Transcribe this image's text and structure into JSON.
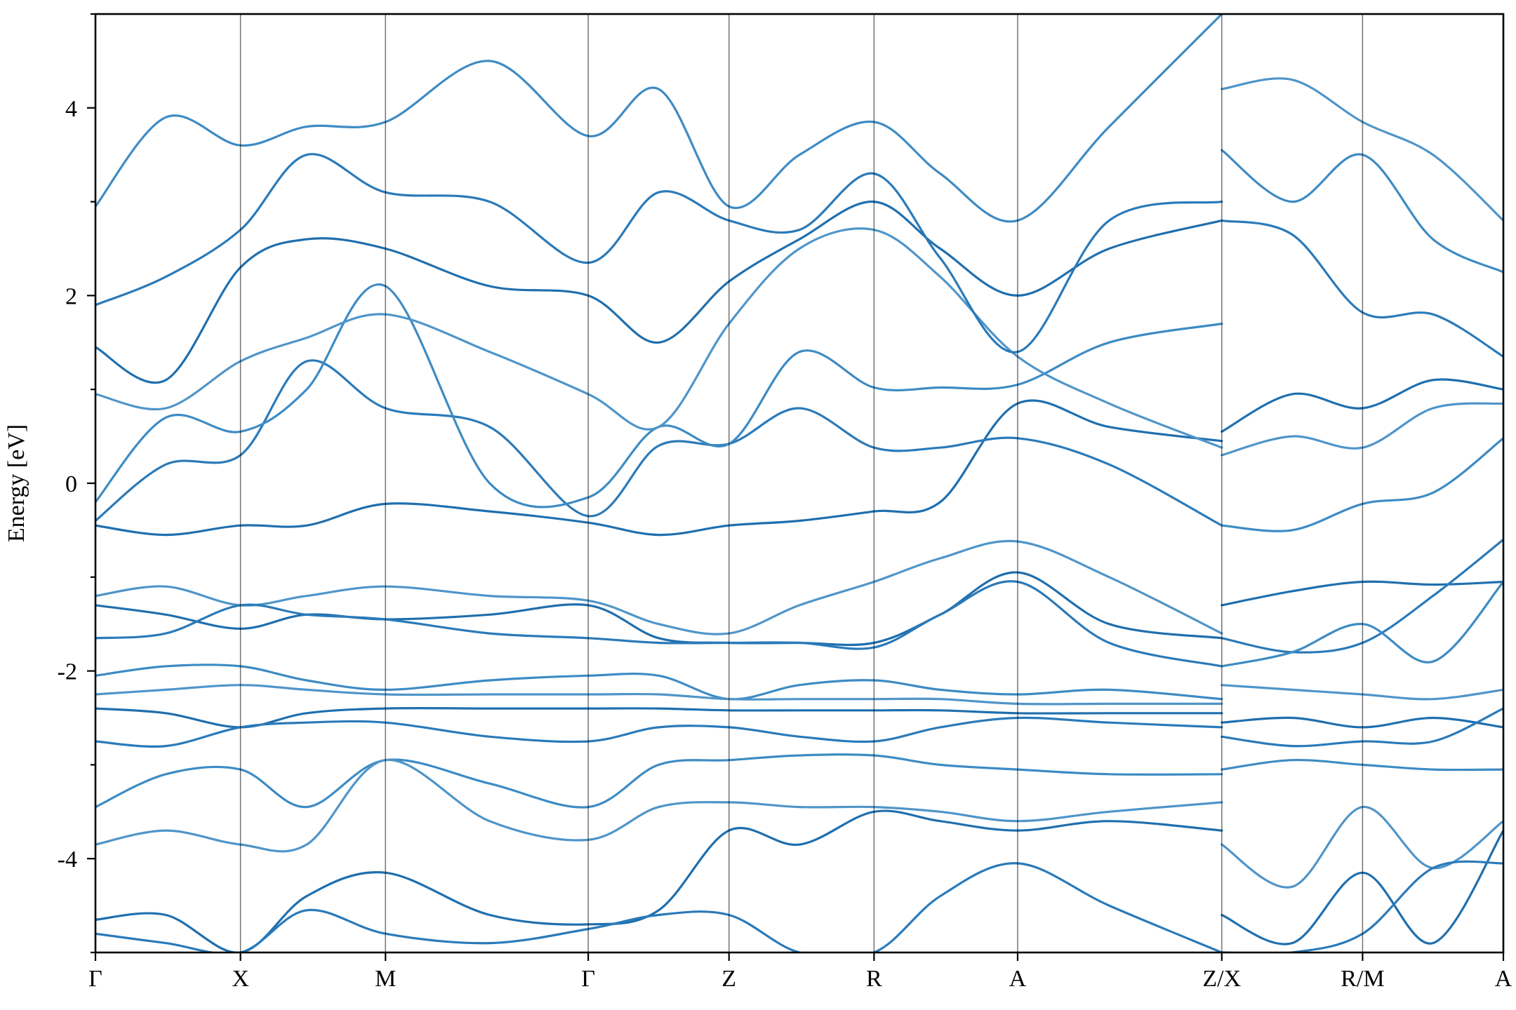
{
  "chart_data": {
    "type": "line",
    "title": "",
    "xlabel": "",
    "ylabel": "Energy [eV]",
    "ylim": [
      -5,
      5
    ],
    "yticks": [
      -4,
      -2,
      0,
      2,
      4
    ],
    "ytick_labels": [
      "-4",
      "-2",
      "0",
      "2",
      "4"
    ],
    "grid": false,
    "legend": "none",
    "xlim": [
      0,
      10.0
    ],
    "high_symmetry_points": [
      {
        "label": "Γ",
        "x": 0.0
      },
      {
        "label": "X",
        "x": 1.03
      },
      {
        "label": "M",
        "x": 2.06
      },
      {
        "label": "Γ",
        "x": 3.5
      },
      {
        "label": "Z",
        "x": 4.5
      },
      {
        "label": "R",
        "x": 5.53
      },
      {
        "label": "A",
        "x": 6.55
      },
      {
        "label": "Z/X",
        "x": 8.0
      },
      {
        "label": "R/M",
        "x": 9.0
      },
      {
        "label": "A",
        "x": 10.0
      }
    ],
    "colors": [
      "#1f6fae",
      "#2a7ab9",
      "#3d8bc4",
      "#4f95c9"
    ],
    "series": [
      {
        "x": [
          0.0,
          0.5,
          1.03,
          1.5,
          2.06,
          2.8,
          3.5,
          4.0,
          4.5,
          5.0,
          5.53,
          6.0,
          6.55,
          7.2,
          8.0
        ],
        "y": [
          -0.45,
          -0.55,
          -0.45,
          -0.45,
          -0.22,
          -0.3,
          -0.42,
          -0.55,
          -0.45,
          -0.4,
          -0.3,
          -0.2,
          0.85,
          0.6,
          0.45
        ]
      },
      {
        "x": [
          0.0,
          0.5,
          1.03,
          1.5,
          2.06,
          2.8,
          3.5,
          4.0,
          4.5,
          5.0,
          5.53,
          6.0,
          6.55,
          7.2,
          8.0
        ],
        "y": [
          -0.4,
          0.2,
          0.3,
          1.3,
          0.8,
          0.6,
          -0.35,
          0.4,
          0.42,
          0.8,
          0.38,
          0.38,
          0.48,
          0.2,
          -0.45
        ]
      },
      {
        "x": [
          0.0,
          0.5,
          1.03,
          1.5,
          2.06,
          2.8,
          3.5,
          4.0,
          4.5,
          5.0,
          5.53,
          6.0,
          6.55,
          7.2,
          8.0
        ],
        "y": [
          -0.2,
          0.7,
          0.55,
          1.0,
          2.1,
          0.0,
          -0.15,
          0.6,
          0.42,
          1.4,
          1.02,
          1.02,
          1.05,
          1.5,
          1.7
        ]
      },
      {
        "x": [
          0.0,
          0.5,
          1.03,
          1.5,
          2.06,
          2.8,
          3.5,
          4.0,
          4.5,
          5.0,
          5.53,
          6.0,
          6.55,
          7.2,
          8.0
        ],
        "y": [
          0.95,
          0.8,
          1.3,
          1.55,
          1.8,
          1.4,
          0.95,
          0.6,
          1.7,
          2.5,
          2.7,
          2.2,
          1.35,
          0.85,
          0.38
        ]
      },
      {
        "x": [
          0.0,
          0.5,
          1.03,
          1.5,
          2.06,
          2.8,
          3.5,
          4.0,
          4.5,
          5.0,
          5.53,
          6.0,
          6.55,
          7.2,
          8.0
        ],
        "y": [
          1.45,
          1.1,
          2.3,
          2.6,
          2.5,
          2.1,
          2.0,
          1.5,
          2.15,
          2.6,
          3.0,
          2.5,
          2.0,
          2.5,
          2.8
        ]
      },
      {
        "x": [
          0.0,
          0.5,
          1.03,
          1.5,
          2.06,
          2.8,
          3.5,
          4.0,
          4.5,
          5.0,
          5.53,
          6.0,
          6.55,
          7.2,
          8.0
        ],
        "y": [
          1.9,
          2.2,
          2.7,
          3.5,
          3.1,
          3.0,
          2.35,
          3.1,
          2.8,
          2.7,
          3.3,
          2.4,
          1.4,
          2.8,
          3.0
        ]
      },
      {
        "x": [
          0.0,
          0.5,
          1.03,
          1.5,
          2.06,
          2.8,
          3.5,
          4.0,
          4.5,
          5.0,
          5.53,
          6.0,
          6.55,
          7.2,
          8.0
        ],
        "y": [
          2.95,
          3.9,
          3.6,
          3.8,
          3.85,
          4.5,
          3.7,
          4.2,
          2.95,
          3.5,
          3.85,
          3.3,
          2.8,
          3.8,
          5.0
        ]
      },
      {
        "x": [
          0.0,
          0.5,
          1.03,
          1.5,
          2.06,
          2.8,
          3.5,
          4.0,
          4.5,
          5.0,
          5.53,
          6.0,
          6.55,
          7.2,
          8.0
        ],
        "y": [
          -1.2,
          -1.1,
          -1.3,
          -1.2,
          -1.1,
          -1.2,
          -1.25,
          -1.5,
          -1.6,
          -1.3,
          -1.05,
          -0.8,
          -0.62,
          -1.0,
          -1.6
        ]
      },
      {
        "x": [
          0.0,
          0.5,
          1.03,
          1.5,
          2.06,
          2.8,
          3.5,
          4.0,
          4.5,
          5.0,
          5.53,
          6.0,
          6.55,
          7.2,
          8.0
        ],
        "y": [
          -1.3,
          -1.4,
          -1.55,
          -1.4,
          -1.45,
          -1.4,
          -1.3,
          -1.65,
          -1.7,
          -1.7,
          -1.7,
          -1.4,
          -0.95,
          -1.5,
          -1.65
        ]
      },
      {
        "x": [
          0.0,
          0.5,
          1.03,
          1.5,
          2.06,
          2.8,
          3.5,
          4.0,
          4.5,
          5.0,
          5.53,
          6.0,
          6.55,
          7.2,
          8.0
        ],
        "y": [
          -1.65,
          -1.6,
          -1.3,
          -1.4,
          -1.45,
          -1.6,
          -1.65,
          -1.7,
          -1.7,
          -1.7,
          -1.75,
          -1.4,
          -1.05,
          -1.7,
          -1.95
        ]
      },
      {
        "x": [
          0.0,
          0.5,
          1.03,
          1.5,
          2.06,
          2.8,
          3.5,
          4.0,
          4.5,
          5.0,
          5.53,
          6.0,
          6.55,
          7.2,
          8.0
        ],
        "y": [
          -2.05,
          -1.95,
          -1.95,
          -2.1,
          -2.2,
          -2.1,
          -2.05,
          -2.05,
          -2.3,
          -2.15,
          -2.1,
          -2.2,
          -2.25,
          -2.2,
          -2.3
        ]
      },
      {
        "x": [
          0.0,
          0.5,
          1.03,
          1.5,
          2.06,
          2.8,
          3.5,
          4.0,
          4.5,
          5.0,
          5.53,
          6.0,
          6.55,
          7.2,
          8.0
        ],
        "y": [
          -2.25,
          -2.2,
          -2.15,
          -2.2,
          -2.25,
          -2.25,
          -2.25,
          -2.25,
          -2.3,
          -2.3,
          -2.3,
          -2.3,
          -2.35,
          -2.35,
          -2.35
        ]
      },
      {
        "x": [
          0.0,
          0.5,
          1.03,
          1.5,
          2.06,
          2.8,
          3.5,
          4.0,
          4.5,
          5.0,
          5.53,
          6.0,
          6.55,
          7.2,
          8.0
        ],
        "y": [
          -2.4,
          -2.45,
          -2.6,
          -2.45,
          -2.4,
          -2.4,
          -2.4,
          -2.4,
          -2.42,
          -2.42,
          -2.42,
          -2.42,
          -2.45,
          -2.45,
          -2.45
        ]
      },
      {
        "x": [
          0.0,
          0.5,
          1.03,
          1.5,
          2.06,
          2.8,
          3.5,
          4.0,
          4.5,
          5.0,
          5.53,
          6.0,
          6.55,
          7.2,
          8.0
        ],
        "y": [
          -2.75,
          -2.8,
          -2.6,
          -2.55,
          -2.55,
          -2.7,
          -2.75,
          -2.6,
          -2.6,
          -2.7,
          -2.75,
          -2.6,
          -2.5,
          -2.55,
          -2.6
        ]
      },
      {
        "x": [
          0.0,
          0.5,
          1.03,
          1.5,
          2.06,
          2.8,
          3.5,
          4.0,
          4.5,
          5.0,
          5.53,
          6.0,
          6.55,
          7.2,
          8.0
        ],
        "y": [
          -3.45,
          -3.1,
          -3.05,
          -3.45,
          -2.95,
          -3.2,
          -3.45,
          -3.0,
          -2.95,
          -2.9,
          -2.9,
          -3.0,
          -3.05,
          -3.1,
          -3.1
        ]
      },
      {
        "x": [
          0.0,
          0.5,
          1.03,
          1.5,
          2.06,
          2.8,
          3.5,
          4.0,
          4.5,
          5.0,
          5.53,
          6.0,
          6.55,
          7.2,
          8.0
        ],
        "y": [
          -3.85,
          -3.7,
          -3.85,
          -3.85,
          -2.95,
          -3.6,
          -3.8,
          -3.45,
          -3.4,
          -3.45,
          -3.45,
          -3.5,
          -3.6,
          -3.5,
          -3.4
        ]
      },
      {
        "x": [
          0.0,
          0.5,
          1.03,
          1.5,
          2.06,
          2.8,
          3.5,
          4.0,
          4.5,
          5.0,
          5.53,
          6.0,
          6.55,
          7.2,
          8.0
        ],
        "y": [
          -4.65,
          -4.6,
          -5.0,
          -4.4,
          -4.15,
          -4.6,
          -4.7,
          -4.55,
          -3.7,
          -3.85,
          -3.5,
          -3.6,
          -3.7,
          -3.6,
          -3.7
        ]
      },
      {
        "x": [
          0.0,
          0.5,
          1.03,
          1.5,
          2.06,
          2.8,
          3.5,
          4.0,
          4.5,
          5.0,
          5.53,
          6.0,
          6.55,
          7.2,
          8.0
        ],
        "y": [
          -4.8,
          -4.9,
          -5.0,
          -4.55,
          -4.8,
          -4.9,
          -4.75,
          -4.6,
          -4.6,
          -5.0,
          -5.0,
          -4.4,
          -4.05,
          -4.5,
          -5.0
        ]
      },
      {
        "x": [
          8.0,
          8.5,
          9.0,
          9.5,
          10.0
        ],
        "y": [
          -0.45,
          -0.5,
          -0.22,
          -0.1,
          0.48
        ]
      },
      {
        "x": [
          8.0,
          8.5,
          9.0,
          9.5,
          10.0
        ],
        "y": [
          0.3,
          0.5,
          0.38,
          0.8,
          0.85
        ]
      },
      {
        "x": [
          8.0,
          8.5,
          9.0,
          9.5,
          10.0
        ],
        "y": [
          0.55,
          0.95,
          0.8,
          1.1,
          1.0
        ]
      },
      {
        "x": [
          8.0,
          8.5,
          9.0,
          9.5,
          10.0
        ],
        "y": [
          2.8,
          2.65,
          1.82,
          1.8,
          1.35
        ]
      },
      {
        "x": [
          8.0,
          8.5,
          9.0,
          9.5,
          10.0
        ],
        "y": [
          3.55,
          3.0,
          3.5,
          2.6,
          2.25
        ]
      },
      {
        "x": [
          8.0,
          8.5,
          9.0,
          9.5,
          10.0
        ],
        "y": [
          4.2,
          4.3,
          3.85,
          3.5,
          2.8
        ]
      },
      {
        "x": [
          8.0,
          8.5,
          9.0,
          9.5,
          10.0
        ],
        "y": [
          -1.3,
          -1.15,
          -1.05,
          -1.08,
          -1.05
        ]
      },
      {
        "x": [
          8.0,
          8.5,
          9.0,
          9.5,
          10.0
        ],
        "y": [
          -1.65,
          -1.8,
          -1.7,
          -1.2,
          -0.6
        ]
      },
      {
        "x": [
          8.0,
          8.5,
          9.0,
          9.5,
          10.0
        ],
        "y": [
          -1.95,
          -1.8,
          -1.5,
          -1.9,
          -1.05
        ]
      },
      {
        "x": [
          8.0,
          8.5,
          9.0,
          9.5,
          10.0
        ],
        "y": [
          -2.15,
          -2.2,
          -2.25,
          -2.3,
          -2.2
        ]
      },
      {
        "x": [
          8.0,
          8.5,
          9.0,
          9.5,
          10.0
        ],
        "y": [
          -2.55,
          -2.5,
          -2.6,
          -2.5,
          -2.6
        ]
      },
      {
        "x": [
          8.0,
          8.5,
          9.0,
          9.5,
          10.0
        ],
        "y": [
          -2.7,
          -2.8,
          -2.75,
          -2.75,
          -2.4
        ]
      },
      {
        "x": [
          8.0,
          8.5,
          9.0,
          9.5,
          10.0
        ],
        "y": [
          -3.05,
          -2.95,
          -3.0,
          -3.05,
          -3.05
        ]
      },
      {
        "x": [
          8.0,
          8.5,
          9.0,
          9.5,
          10.0
        ],
        "y": [
          -3.85,
          -4.3,
          -3.45,
          -4.1,
          -3.6
        ]
      },
      {
        "x": [
          8.0,
          8.5,
          9.0,
          9.5,
          10.0
        ],
        "y": [
          -4.6,
          -4.9,
          -4.15,
          -4.9,
          -3.7
        ]
      },
      {
        "x": [
          8.0,
          8.5,
          9.0,
          9.5,
          10.0
        ],
        "y": [
          -5.0,
          -5.0,
          -4.8,
          -4.1,
          -4.05
        ]
      }
    ]
  }
}
